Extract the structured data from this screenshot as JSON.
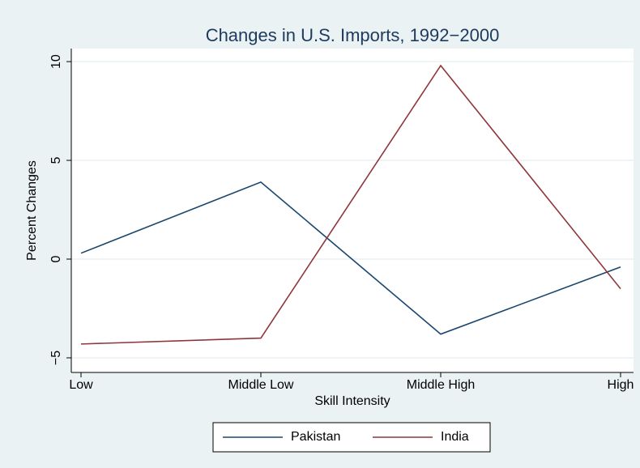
{
  "chart_data": {
    "type": "line",
    "title": "Changes in U.S. Imports, 1992−2000",
    "x_label": "Skill Intensity",
    "y_label": "Percent Changes",
    "categories": [
      "Low",
      "Middle Low",
      "Middle High",
      "High"
    ],
    "series": [
      {
        "name": "Pakistan",
        "color": "#1a476f",
        "values": [
          0.3,
          3.9,
          -3.8,
          -0.4
        ]
      },
      {
        "name": "India",
        "color": "#90353b",
        "values": [
          -4.3,
          -4.0,
          9.8,
          -1.5
        ]
      }
    ],
    "ylim": [
      -5.74,
      10.66
    ],
    "yticks": [
      {
        "value": -5,
        "label": "−5"
      },
      0,
      5,
      10
    ],
    "grid": true,
    "legend": "bottom"
  }
}
